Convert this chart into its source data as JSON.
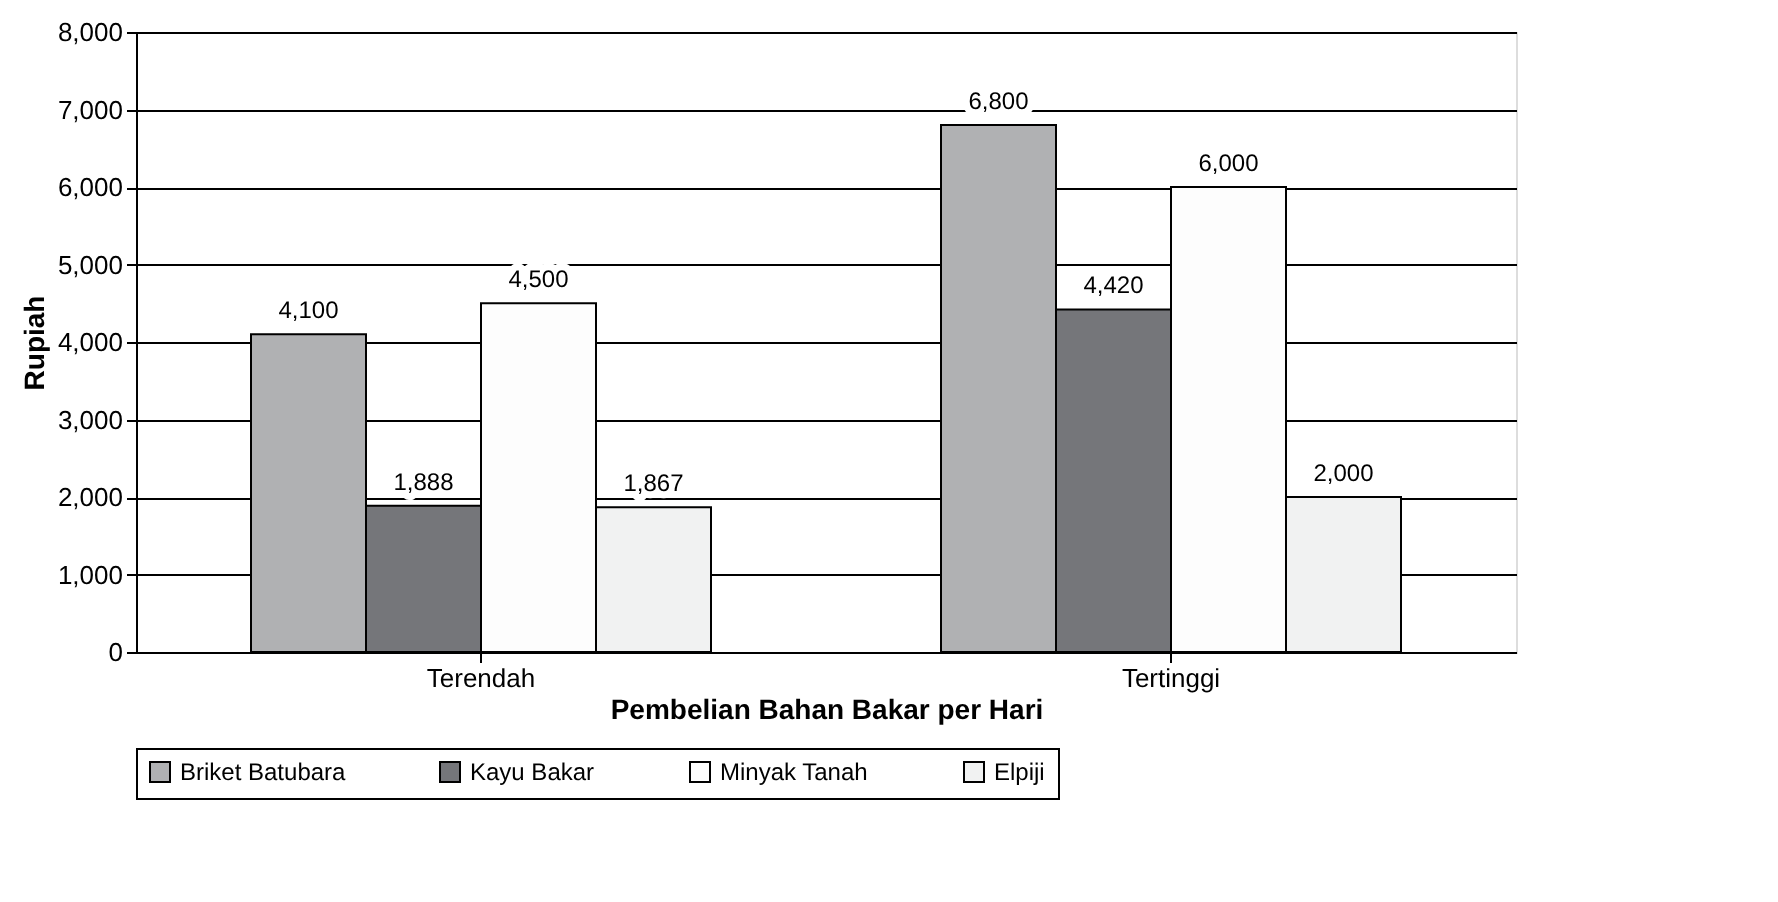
{
  "chart_data": {
    "type": "bar",
    "xlabel": "Pembelian Bahan Bakar per Hari",
    "ylabel": "Rupiah",
    "categories": [
      "Terendah",
      "Tertinggi"
    ],
    "series": [
      {
        "name": "Briket Batubara",
        "color": "#b0b1b3",
        "values": [
          4100,
          6800
        ],
        "value_labels": [
          "4,100",
          "6,800"
        ]
      },
      {
        "name": "Kayu Bakar",
        "color": "#75767a",
        "values": [
          1888,
          4420
        ],
        "value_labels": [
          "1,888",
          "4,420"
        ]
      },
      {
        "name": "Minyak Tanah",
        "color": "#fdfdfd",
        "values": [
          4500,
          6000
        ],
        "value_labels": [
          "4,500",
          "6,000"
        ]
      },
      {
        "name": "Elpiji",
        "color": "#f1f2f2",
        "values": [
          1867,
          2000
        ],
        "value_labels": [
          "1,867",
          "2,000"
        ]
      }
    ],
    "ylim": [
      0,
      8000
    ],
    "yticks": [
      0,
      {
        "value": 1000,
        "label": "1,000"
      },
      {
        "value": 2000,
        "label": "2,000"
      },
      {
        "value": 3000,
        "label": "3,000"
      },
      {
        "value": 4000,
        "label": "4,000"
      },
      {
        "value": 5000,
        "label": "5,000"
      },
      {
        "value": 6000,
        "label": "6,000"
      },
      {
        "value": 7000,
        "label": "7,000"
      },
      {
        "value": 8000,
        "label": "8,000"
      }
    ],
    "grid": "y",
    "legend": "bottom"
  }
}
